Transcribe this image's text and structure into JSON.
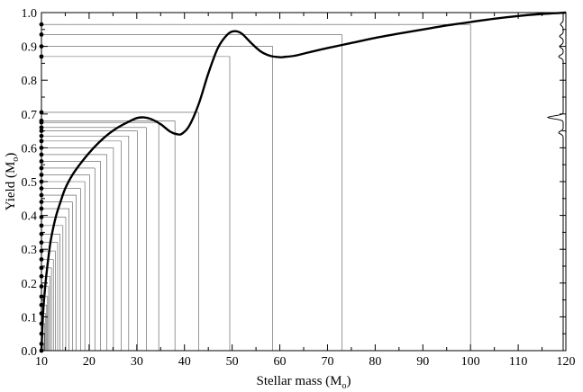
{
  "chart_data": {
    "type": "line",
    "xlabel": "Stellar mass",
    "xlabel_unit": "M",
    "xlabel_unit_sub": "o",
    "ylabel": "Yield",
    "ylabel_unit": "M",
    "ylabel_unit_sub": "o",
    "xlim": [
      10,
      120
    ],
    "ylim": [
      0,
      1.0
    ],
    "x_ticks": [
      10,
      20,
      30,
      40,
      50,
      60,
      70,
      80,
      90,
      100,
      110,
      120
    ],
    "y_ticks": [
      0.0,
      0.1,
      0.2,
      0.3,
      0.4,
      0.5,
      0.6,
      0.7,
      0.8,
      0.9,
      1.0
    ],
    "y_tick_labels": [
      "0.0",
      "0.1",
      "0.2",
      "0.3",
      "0.4",
      "0.5",
      "0.6",
      "0.7",
      "0.8",
      "0.9",
      "1.0"
    ],
    "grid": false,
    "series": [
      {
        "role": "yield-curve",
        "x": [
          10,
          10.3,
          10.6,
          11,
          11.5,
          12,
          13,
          14,
          15,
          16.5,
          18,
          20,
          22,
          24,
          26,
          28,
          30,
          31.5,
          33,
          35,
          37,
          38.5,
          39.5,
          41,
          43,
          45,
          47,
          49,
          50.5,
          52,
          54,
          56,
          58,
          60,
          61,
          63,
          66,
          70,
          75,
          80,
          85,
          90,
          95,
          100,
          105,
          110,
          115,
          120
        ],
        "y": [
          0.0,
          0.1,
          0.16,
          0.22,
          0.28,
          0.33,
          0.395,
          0.44,
          0.48,
          0.52,
          0.55,
          0.585,
          0.615,
          0.64,
          0.66,
          0.675,
          0.688,
          0.69,
          0.685,
          0.67,
          0.648,
          0.64,
          0.642,
          0.665,
          0.73,
          0.82,
          0.895,
          0.935,
          0.945,
          0.938,
          0.91,
          0.885,
          0.872,
          0.868,
          0.869,
          0.872,
          0.882,
          0.895,
          0.91,
          0.925,
          0.938,
          0.95,
          0.962,
          0.972,
          0.982,
          0.99,
          0.996,
          1.0
        ]
      }
    ],
    "sample_points": [
      {
        "x": 10.4,
        "y": 0.0
      },
      {
        "x": 10.5,
        "y": 0.02
      },
      {
        "x": 10.6,
        "y": 0.05
      },
      {
        "x": 10.7,
        "y": 0.08
      },
      {
        "x": 10.9,
        "y": 0.11
      },
      {
        "x": 11.1,
        "y": 0.135
      },
      {
        "x": 11.3,
        "y": 0.16
      },
      {
        "x": 11.5,
        "y": 0.19
      },
      {
        "x": 11.8,
        "y": 0.22
      },
      {
        "x": 12.1,
        "y": 0.245
      },
      {
        "x": 12.5,
        "y": 0.27
      },
      {
        "x": 12.9,
        "y": 0.295
      },
      {
        "x": 13.4,
        "y": 0.32
      },
      {
        "x": 13.9,
        "y": 0.345
      },
      {
        "x": 14.5,
        "y": 0.37
      },
      {
        "x": 15.1,
        "y": 0.395
      },
      {
        "x": 15.8,
        "y": 0.42
      },
      {
        "x": 16.5,
        "y": 0.44
      },
      {
        "x": 17.3,
        "y": 0.46
      },
      {
        "x": 18.2,
        "y": 0.48
      },
      {
        "x": 19.1,
        "y": 0.5
      },
      {
        "x": 20.1,
        "y": 0.52
      },
      {
        "x": 21.2,
        "y": 0.54
      },
      {
        "x": 22.4,
        "y": 0.56
      },
      {
        "x": 23.7,
        "y": 0.58
      },
      {
        "x": 25.1,
        "y": 0.6
      },
      {
        "x": 26.7,
        "y": 0.62
      },
      {
        "x": 28.3,
        "y": 0.635
      },
      {
        "x": 30.1,
        "y": 0.65
      },
      {
        "x": 32.0,
        "y": 0.66
      },
      {
        "x": 34.6,
        "y": 0.675
      },
      {
        "x": 38.0,
        "y": 0.68
      },
      {
        "x": 43.0,
        "y": 0.705
      },
      {
        "x": 49.5,
        "y": 0.87
      },
      {
        "x": 58.5,
        "y": 0.9
      },
      {
        "x": 73.0,
        "y": 0.935
      },
      {
        "x": 100.0,
        "y": 0.965
      }
    ],
    "marginal_distribution": {
      "orientation": "vertical",
      "peaks": [
        {
          "y": 0.645,
          "width": 5
        },
        {
          "y": 0.69,
          "width": 17
        },
        {
          "y": 0.87,
          "width": 5
        },
        {
          "y": 0.9,
          "width": 4
        },
        {
          "y": 0.93,
          "width": 4
        },
        {
          "y": 0.965,
          "width": 3
        }
      ]
    }
  }
}
